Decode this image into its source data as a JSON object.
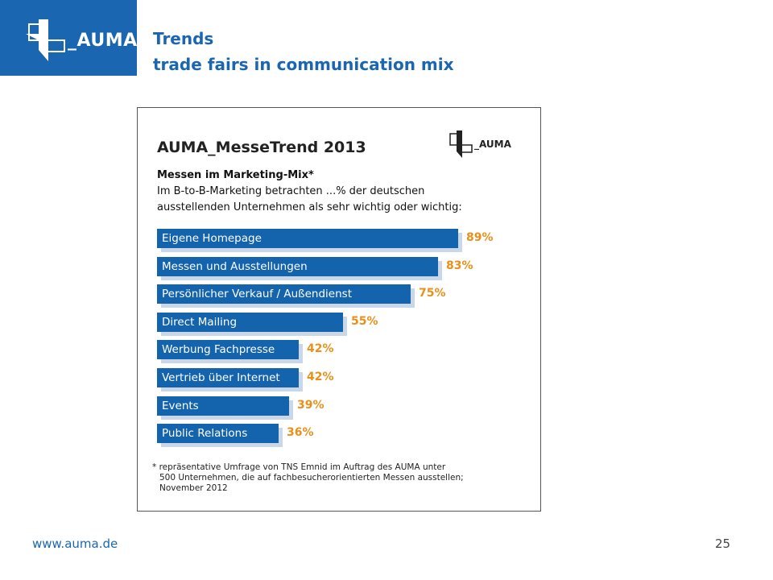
{
  "header": {
    "logo_text": "_AUMA",
    "title_line1": "Trends",
    "title_line2": "trade fairs in communication mix"
  },
  "chart": {
    "heading": "AUMA_MesseTrend 2013",
    "logo_text": "_AUMA",
    "subtitle_bold": "Messen im Marketing-Mix*",
    "subtitle_line1": "Im B-to-B-Marketing betrachten ...% der deutschen",
    "subtitle_line2": "ausstellenden Unternehmen als sehr wichtig oder wichtig:",
    "footnote": [
      "* repräsentative Umfrage von TNS Emnid im Auftrag des AUMA unter",
      "500 Unternehmen, die auf fachbesucherorientierten Messen ausstellen;",
      "November 2012"
    ]
  },
  "chart_data": {
    "type": "bar",
    "orientation": "horizontal",
    "categories": [
      "Eigene Homepage",
      "Messen und Ausstellungen",
      "Persönlicher Verkauf / Außendienst",
      "Direct Mailing",
      "Werbung Fachpresse",
      "Vertrieb über Internet",
      "Events",
      "Public Relations"
    ],
    "values": [
      89,
      83,
      75,
      55,
      42,
      42,
      39,
      36
    ],
    "value_labels": [
      "89%",
      "83%",
      "75%",
      "55%",
      "42%",
      "42%",
      "39%",
      "36%"
    ],
    "unit": "%",
    "bar_color": "#1463ad",
    "shadow_color": "#c9d7e8",
    "value_label_color": "#e8901a",
    "grid": false
  },
  "footer": {
    "website": "www.auma.de",
    "page_number": "25"
  },
  "colors": {
    "brand_blue": "#1a66b0"
  }
}
